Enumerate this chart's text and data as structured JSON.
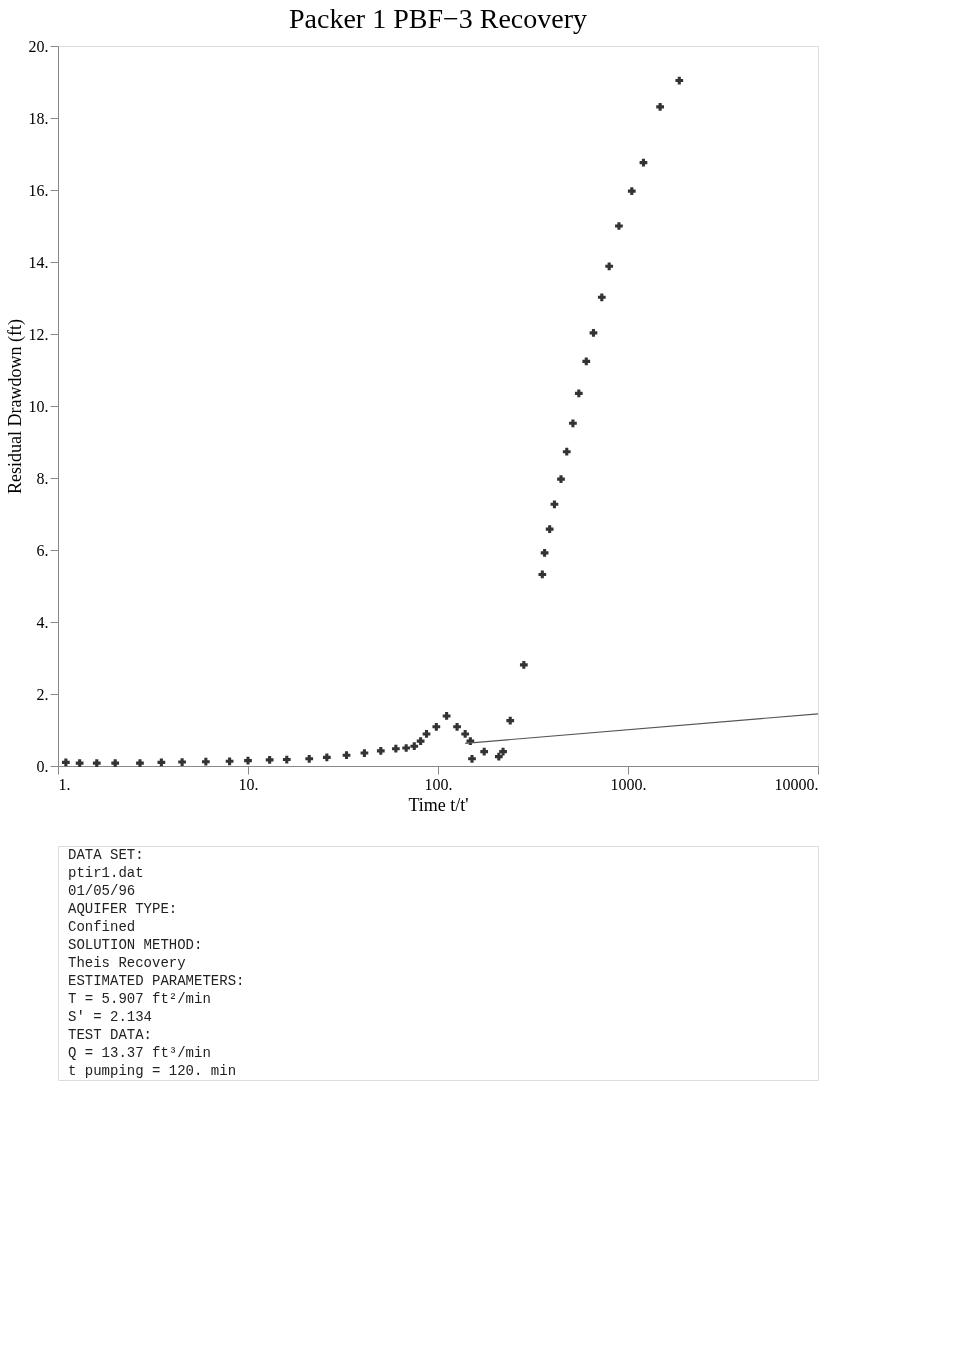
{
  "chart_data": {
    "type": "scatter",
    "title": "Packer 1 PBF−3 Recovery",
    "xlabel": "Time t/t'",
    "ylabel": "Residual Drawdown (ft)",
    "log": "x",
    "grid": false,
    "marker": "cross",
    "xlim": [
      1,
      10000
    ],
    "xticks": [
      {
        "value": 1,
        "label": "1."
      },
      {
        "value": 10,
        "label": "10."
      },
      {
        "value": 100,
        "label": "100."
      },
      {
        "value": 1000,
        "label": "1000."
      },
      {
        "value": 10000,
        "label": "10000."
      }
    ],
    "ylim": [
      0,
      20
    ],
    "yticks": [
      {
        "value": 0,
        "label": "0."
      },
      {
        "value": 2,
        "label": "2."
      },
      {
        "value": 4,
        "label": "4."
      },
      {
        "value": 6,
        "label": "6."
      },
      {
        "value": 8,
        "label": "8."
      },
      {
        "value": 10,
        "label": "10."
      },
      {
        "value": 12,
        "label": "12."
      },
      {
        "value": 14,
        "label": "14."
      },
      {
        "value": 16,
        "label": "16."
      },
      {
        "value": 18,
        "label": "18."
      },
      {
        "value": 20,
        "label": "20."
      }
    ],
    "series": [
      {
        "color": "#333333",
        "x": [
          1.1,
          1.3,
          1.6,
          2,
          2.7,
          3.5,
          4.5,
          6,
          8,
          10,
          13,
          16,
          21,
          26,
          33,
          41,
          50,
          60,
          68,
          75,
          81,
          87,
          98,
          111,
          126,
          139,
          148,
          151,
          175,
          209,
          220,
          240,
          283,
          354,
          364,
          387,
          410,
          444,
          476,
          513,
          551,
          603,
          658,
          728,
          796,
          896,
          1047,
          1206,
          1476,
          1862
        ],
        "values": [
          0.1,
          0.08,
          0.08,
          0.08,
          0.08,
          0.1,
          0.11,
          0.12,
          0.13,
          0.15,
          0.17,
          0.18,
          0.2,
          0.24,
          0.3,
          0.36,
          0.42,
          0.48,
          0.5,
          0.55,
          0.69,
          0.89,
          1.09,
          1.39,
          1.09,
          0.89,
          0.69,
          0.2,
          0.4,
          0.26,
          0.4,
          1.26,
          2.81,
          5.32,
          5.92,
          6.58,
          7.27,
          7.97,
          8.73,
          9.52,
          10.35,
          11.24,
          12.03,
          13.02,
          13.88,
          15.0,
          15.97,
          16.76,
          18.31,
          19.04
        ]
      },
      {
        "type": "line",
        "marker": "none",
        "color": "#555555",
        "x": [
          139,
          10000
        ],
        "values": [
          0.63,
          1.45
        ]
      }
    ],
    "annotations": [
      "DATA SET:",
      "ptir1.dat",
      "01/05/96",
      "AQUIFER TYPE:",
      "Confined",
      "SOLUTION METHOD:",
      "Theis Recovery",
      "ESTIMATED PARAMETERS:",
      "T = 5.907 ft²/min",
      "S' = 2.134",
      "TEST DATA:",
      "Q = 13.37 ft³/min",
      "t pumping = 120. min"
    ]
  }
}
